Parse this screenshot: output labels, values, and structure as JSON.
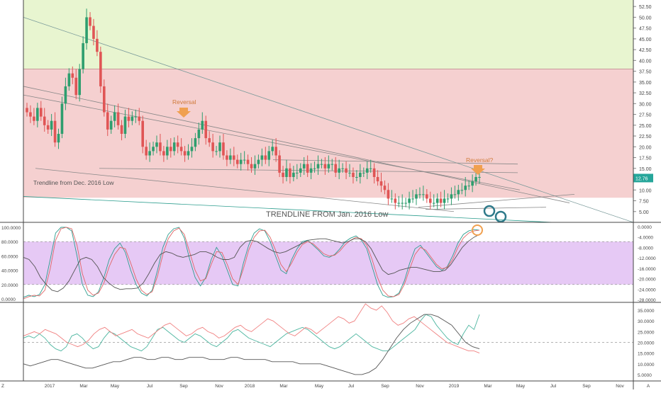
{
  "chart_data": [
    {
      "type": "candlestick",
      "title": "",
      "x_ticks": [
        "Z",
        "2017",
        "Mar",
        "May",
        "Jul",
        "Sep",
        "Nov",
        "2018",
        "Mar",
        "May",
        "Jul",
        "Sep",
        "Nov",
        "2019",
        "Mar",
        "May",
        "Jul",
        "Sep",
        "Nov",
        "A"
      ],
      "y_ticks": [
        "52.50",
        "50.00",
        "47.50",
        "45.00",
        "42.50",
        "40.00",
        "37.50",
        "35.00",
        "32.50",
        "30.00",
        "27.50",
        "25.00",
        "22.50",
        "20.00",
        "17.50",
        "15.00",
        "12.50",
        "10.00",
        "7.50",
        "5.00"
      ],
      "ylim": [
        2.5,
        54
      ],
      "last_price": "12.76",
      "zones": [
        {
          "name": "upper",
          "from": 38,
          "to": 54,
          "color": "#e8f5d0"
        },
        {
          "name": "middle",
          "from": 8.2,
          "to": 38,
          "color": "#f5d0d0"
        }
      ],
      "annotations": [
        {
          "text": "Reversal",
          "x": 0.31,
          "y": 30
        },
        {
          "text": "Reversal?",
          "x": 0.78,
          "y": 19
        },
        {
          "text": "Trendline from Dec. 2016 Low",
          "x": 0.05,
          "y": 13
        },
        {
          "text": "TRENDLINE FROM Jan. 2016 Low",
          "x": 0.44,
          "y": 5.5
        }
      ],
      "close": [
        28,
        27,
        26,
        29,
        27,
        25,
        24,
        26,
        21,
        23,
        30,
        34,
        37,
        36,
        32,
        38,
        44,
        50,
        48,
        45,
        42,
        34,
        28,
        24,
        26,
        28,
        25,
        23,
        27,
        26,
        27,
        27,
        26,
        20,
        18,
        19,
        20,
        21,
        19,
        18,
        20,
        19,
        21,
        20,
        19,
        18,
        19,
        20,
        22,
        24,
        26,
        22,
        21,
        19,
        19,
        21,
        18,
        17,
        18,
        17,
        16,
        17,
        17,
        16,
        15,
        16,
        17,
        18,
        17,
        19,
        20,
        18,
        14,
        13,
        15,
        13,
        14,
        14,
        15,
        16,
        14,
        15,
        15,
        16,
        16,
        15,
        16,
        16,
        14,
        15,
        15,
        14,
        14,
        13,
        13,
        14,
        14,
        15,
        15,
        13,
        12,
        11,
        10,
        8,
        8,
        7,
        7,
        7,
        7,
        8,
        8,
        9,
        9,
        9,
        8,
        7,
        7,
        8,
        7,
        8,
        8,
        9,
        9,
        10,
        10,
        11,
        11,
        12,
        13,
        13
      ]
    },
    {
      "type": "line",
      "title": "",
      "y_ticks_left": [
        "100.0000",
        "80.0000",
        "60.0000",
        "40.0000",
        "20.0000",
        "0.0000"
      ],
      "y_ticks_right": [
        "0.0000",
        "-4.0000",
        "-8.0000",
        "-12.0000",
        "-16.0000",
        "-20.0000",
        "-24.0000",
        "-28.0000"
      ],
      "ylim": [
        -5,
        105
      ],
      "band": [
        20,
        80
      ],
      "series": [
        {
          "name": "",
          "color": "#2e9e8f",
          "values": [
            2,
            5,
            3,
            6,
            20,
            55,
            92,
            100,
            100,
            95,
            60,
            20,
            5,
            3,
            10,
            30,
            55,
            70,
            78,
            65,
            40,
            20,
            8,
            4,
            12,
            40,
            72,
            90,
            98,
            100,
            85,
            55,
            30,
            18,
            30,
            55,
            72,
            60,
            40,
            20,
            18,
            50,
            75,
            92,
            98,
            95,
            80,
            60,
            40,
            35,
            55,
            70,
            80,
            82,
            75,
            68,
            60,
            58,
            62,
            70,
            80,
            85,
            88,
            82,
            70,
            45,
            20,
            5,
            2,
            3,
            8,
            25,
            50,
            70,
            75,
            65,
            55,
            45,
            40,
            45,
            60,
            78,
            90,
            95,
            97,
            96
          ]
        },
        {
          "name": "",
          "color": "#e06666",
          "values": [
            0,
            3,
            5,
            4,
            12,
            42,
            82,
            98,
            100,
            98,
            75,
            35,
            12,
            5,
            8,
            22,
            45,
            62,
            72,
            70,
            50,
            28,
            12,
            6,
            10,
            32,
            62,
            84,
            95,
            99,
            90,
            65,
            40,
            25,
            28,
            48,
            66,
            65,
            48,
            28,
            20,
            42,
            68,
            86,
            95,
            96,
            86,
            68,
            48,
            38,
            50,
            65,
            76,
            80,
            77,
            70,
            63,
            60,
            61,
            67,
            76,
            82,
            86,
            84,
            75,
            55,
            30,
            12,
            4,
            3,
            6,
            20,
            42,
            62,
            72,
            68,
            58,
            48,
            42,
            44,
            55,
            72,
            85,
            92,
            95,
            96
          ]
        },
        {
          "name": "",
          "color": "#555555",
          "values": [
            58,
            55,
            45,
            30,
            20,
            12,
            10,
            15,
            25,
            40,
            55,
            58,
            55,
            45,
            30,
            22,
            16,
            13,
            14,
            14,
            15,
            22,
            35,
            50,
            62,
            66,
            64,
            60,
            58,
            60,
            62,
            66,
            66,
            63,
            58,
            55,
            55,
            58,
            72,
            80,
            82,
            80,
            75,
            70,
            66,
            64,
            66,
            70,
            74,
            78,
            82,
            83,
            84,
            84,
            82,
            80,
            78,
            80,
            84,
            84,
            80,
            70,
            55,
            40,
            34,
            36,
            40,
            42,
            44,
            44,
            42,
            40,
            38,
            38,
            40,
            48,
            60,
            72,
            80,
            86,
            90
          ]
        }
      ]
    },
    {
      "type": "line",
      "title": "",
      "y_ticks": [
        "35.0000",
        "30.0000",
        "25.0000",
        "20.0000",
        "15.0000",
        "10.0000",
        "5.0000"
      ],
      "ylim": [
        2,
        38
      ],
      "reference_line": 20,
      "series": [
        {
          "name": "",
          "color": "#4db6a0",
          "values": [
            22,
            23,
            22,
            24,
            22,
            19,
            17,
            16,
            18,
            23,
            24,
            22,
            19,
            17,
            18,
            22,
            25,
            24,
            22,
            20,
            18,
            17,
            16,
            18,
            22,
            26,
            27,
            25,
            23,
            21,
            20,
            22,
            24,
            23,
            21,
            19,
            18,
            20,
            22,
            25,
            26,
            24,
            22,
            21,
            20,
            19,
            18,
            20,
            22,
            24,
            25,
            26,
            27,
            26,
            24,
            22,
            20,
            18,
            17,
            18,
            20,
            22,
            24,
            22,
            20,
            18,
            17,
            16,
            16,
            18,
            20,
            22,
            24,
            26,
            30,
            33,
            32,
            28,
            25,
            22,
            20,
            19,
            24,
            28,
            26,
            33
          ]
        },
        {
          "name": "",
          "color": "#f08080",
          "values": [
            23,
            24,
            25,
            24,
            26,
            25,
            24,
            22,
            20,
            19,
            18,
            19,
            21,
            24,
            26,
            27,
            25,
            23,
            24,
            25,
            26,
            24,
            23,
            22,
            24,
            26,
            28,
            29,
            27,
            25,
            23,
            24,
            26,
            27,
            25,
            24,
            22,
            23,
            25,
            27,
            28,
            26,
            25,
            27,
            29,
            31,
            30,
            28,
            26,
            24,
            23,
            25,
            27,
            26,
            24,
            26,
            28,
            30,
            32,
            31,
            29,
            30,
            34,
            38,
            36,
            35,
            37,
            34,
            30,
            28,
            29,
            31,
            32,
            30,
            28,
            26,
            24,
            22,
            20,
            19,
            18,
            17,
            16,
            16,
            15
          ]
        },
        {
          "name": "",
          "color": "#555555",
          "values": [
            10,
            9,
            10,
            11,
            12,
            12,
            11,
            10,
            9,
            8,
            8,
            9,
            10,
            11,
            11,
            12,
            13,
            13,
            12,
            12,
            13,
            13,
            12,
            12,
            13,
            13,
            13,
            12,
            12,
            12,
            13,
            13,
            12,
            12,
            12,
            12,
            11,
            11,
            11,
            11,
            10,
            10,
            10,
            10,
            9,
            8,
            7,
            6,
            5,
            5,
            6,
            8,
            12,
            17,
            22,
            26,
            29,
            31,
            33,
            33,
            32,
            30,
            28,
            24,
            20,
            18,
            17
          ]
        }
      ]
    }
  ]
}
